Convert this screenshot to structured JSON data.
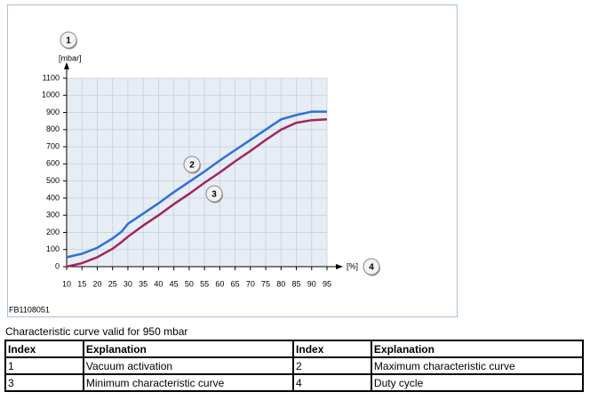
{
  "chart_data": {
    "type": "line",
    "y_unit": "[mbar]",
    "x_unit": "[%]",
    "figure_id": "FB1108051",
    "annotations": [
      "1",
      "2",
      "3",
      "4"
    ],
    "x": [
      10,
      15,
      20,
      25,
      28,
      30,
      35,
      40,
      45,
      50,
      55,
      60,
      65,
      70,
      75,
      80,
      85,
      90,
      95
    ],
    "series": [
      {
        "color": "#2f6fd8",
        "values": [
          55,
          75,
          110,
          165,
          205,
          250,
          310,
          370,
          435,
          495,
          555,
          620,
          680,
          740,
          800,
          860,
          885,
          905,
          905
        ]
      },
      {
        "color": "#a3245a",
        "values": [
          0,
          20,
          55,
          105,
          145,
          175,
          240,
          300,
          365,
          425,
          490,
          550,
          615,
          675,
          740,
          800,
          840,
          855,
          860
        ]
      }
    ],
    "xlim": [
      10,
      95
    ],
    "xticks": [
      10,
      15,
      20,
      25,
      30,
      35,
      40,
      45,
      50,
      55,
      60,
      65,
      70,
      75,
      80,
      85,
      90,
      95
    ],
    "ylim": [
      0,
      1100
    ],
    "yticks": [
      0,
      100,
      200,
      300,
      400,
      500,
      600,
      700,
      800,
      900,
      1000,
      1100
    ],
    "grid": true
  },
  "caption": "Characteristic curve valid for 950 mbar",
  "table": {
    "header": [
      "Index",
      "Explanation",
      "Index",
      "Explanation"
    ],
    "rows": [
      [
        "1",
        "Vacuum activation",
        "2",
        "Maximum characteristic curve"
      ],
      [
        "3",
        "Minimum characteristic curve",
        "4",
        "Duty cycle"
      ]
    ]
  }
}
